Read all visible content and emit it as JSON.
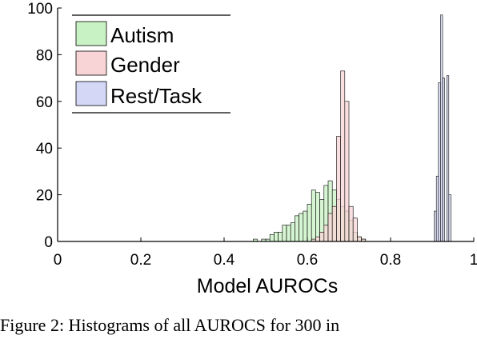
{
  "caption": "Figure 2: Histograms of all AUROCS for 300 in",
  "chart_data": {
    "type": "histogram",
    "xlabel": "Model AUROCs",
    "ylabel": "",
    "xlim": [
      0,
      1
    ],
    "ylim": [
      0,
      100
    ],
    "xticks": [
      "0",
      "0.2",
      "0.4",
      "0.6",
      "0.8",
      "1"
    ],
    "yticks": [
      "0",
      "20",
      "40",
      "60",
      "80",
      "100"
    ],
    "grid": false,
    "legend_placement": "top-left",
    "series": [
      {
        "name": "Autism",
        "color": "#c8f2c3",
        "bin_width": 0.01,
        "bins": [
          [
            0.47,
            1
          ],
          [
            0.49,
            1
          ],
          [
            0.5,
            1
          ],
          [
            0.51,
            3
          ],
          [
            0.52,
            4
          ],
          [
            0.53,
            4
          ],
          [
            0.54,
            7
          ],
          [
            0.55,
            7
          ],
          [
            0.56,
            8
          ],
          [
            0.57,
            11
          ],
          [
            0.58,
            12
          ],
          [
            0.59,
            13
          ],
          [
            0.6,
            16
          ],
          [
            0.61,
            22
          ],
          [
            0.62,
            21
          ],
          [
            0.63,
            18
          ],
          [
            0.64,
            24
          ],
          [
            0.65,
            26
          ],
          [
            0.66,
            22
          ],
          [
            0.67,
            18
          ],
          [
            0.68,
            15
          ],
          [
            0.69,
            13
          ],
          [
            0.7,
            9
          ],
          [
            0.71,
            4
          ],
          [
            0.72,
            2
          ],
          [
            0.73,
            1
          ]
        ]
      },
      {
        "name": "Gender",
        "color": "#f8d4d6",
        "bin_width": 0.01,
        "bins": [
          [
            0.61,
            1
          ],
          [
            0.62,
            2
          ],
          [
            0.63,
            4
          ],
          [
            0.64,
            7
          ],
          [
            0.65,
            12
          ],
          [
            0.66,
            15
          ],
          [
            0.67,
            45
          ],
          [
            0.68,
            73
          ],
          [
            0.69,
            60
          ],
          [
            0.7,
            15
          ],
          [
            0.71,
            10
          ],
          [
            0.72,
            2
          ],
          [
            0.73,
            1
          ]
        ]
      },
      {
        "name": "Rest/Task",
        "color": "#d4d8f6",
        "bin_width": 0.005,
        "bins": [
          [
            0.905,
            13
          ],
          [
            0.91,
            28
          ],
          [
            0.915,
            68
          ],
          [
            0.92,
            97
          ],
          [
            0.925,
            70
          ],
          [
            0.935,
            71
          ],
          [
            0.94,
            20
          ]
        ]
      }
    ]
  }
}
